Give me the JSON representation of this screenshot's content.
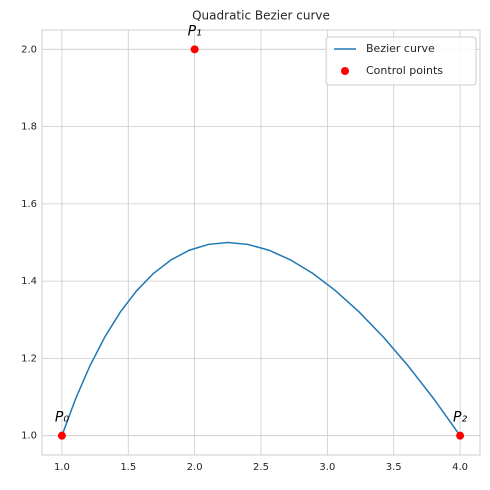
{
  "chart_data": {
    "type": "line",
    "title": "Quadratic Bezier curve",
    "xlim": [
      0.85,
      4.15
    ],
    "ylim": [
      0.95,
      2.05
    ],
    "xticks": [
      {
        "value": 1,
        "label": "1.0"
      },
      {
        "value": 1.5,
        "label": "1.5"
      },
      {
        "value": 2,
        "label": "2.0"
      },
      {
        "value": 2.5,
        "label": "2.5"
      },
      {
        "value": 3,
        "label": "3.0"
      },
      {
        "value": 3.5,
        "label": "3.5"
      },
      {
        "value": 4,
        "label": "4.0"
      }
    ],
    "yticks": [
      {
        "value": 1,
        "label": "1.0"
      },
      {
        "value": 1.2,
        "label": "1.2"
      },
      {
        "value": 1.4,
        "label": "1.4"
      },
      {
        "value": 1.6,
        "label": "1.6"
      },
      {
        "value": 1.8,
        "label": "1.8"
      },
      {
        "value": 2,
        "label": "2.0"
      }
    ],
    "grid": true,
    "legend": "upper right",
    "series": [
      {
        "name": "Bezier curve",
        "type": "line",
        "color": "#1f77b4",
        "x": [
          1,
          1.1025,
          1.21,
          1.3225,
          1.44,
          1.5625,
          1.69,
          1.8225,
          1.96,
          2.1025,
          2.25,
          2.4025,
          2.56,
          2.7225,
          2.89,
          3.0625,
          3.24,
          3.4225,
          3.61,
          3.8025,
          4
        ],
        "values": [
          1,
          1.095,
          1.18,
          1.255,
          1.32,
          1.375,
          1.42,
          1.455,
          1.48,
          1.495,
          1.5,
          1.495,
          1.48,
          1.455,
          1.42,
          1.375,
          1.32,
          1.255,
          1.18,
          1.095,
          1
        ]
      },
      {
        "name": "Control points",
        "type": "scatter",
        "color": "#ff0000",
        "x": [
          1,
          2,
          4
        ],
        "values": [
          1,
          2,
          1
        ]
      }
    ],
    "annotations": [
      "P₀",
      "P₁",
      "P₂"
    ]
  }
}
